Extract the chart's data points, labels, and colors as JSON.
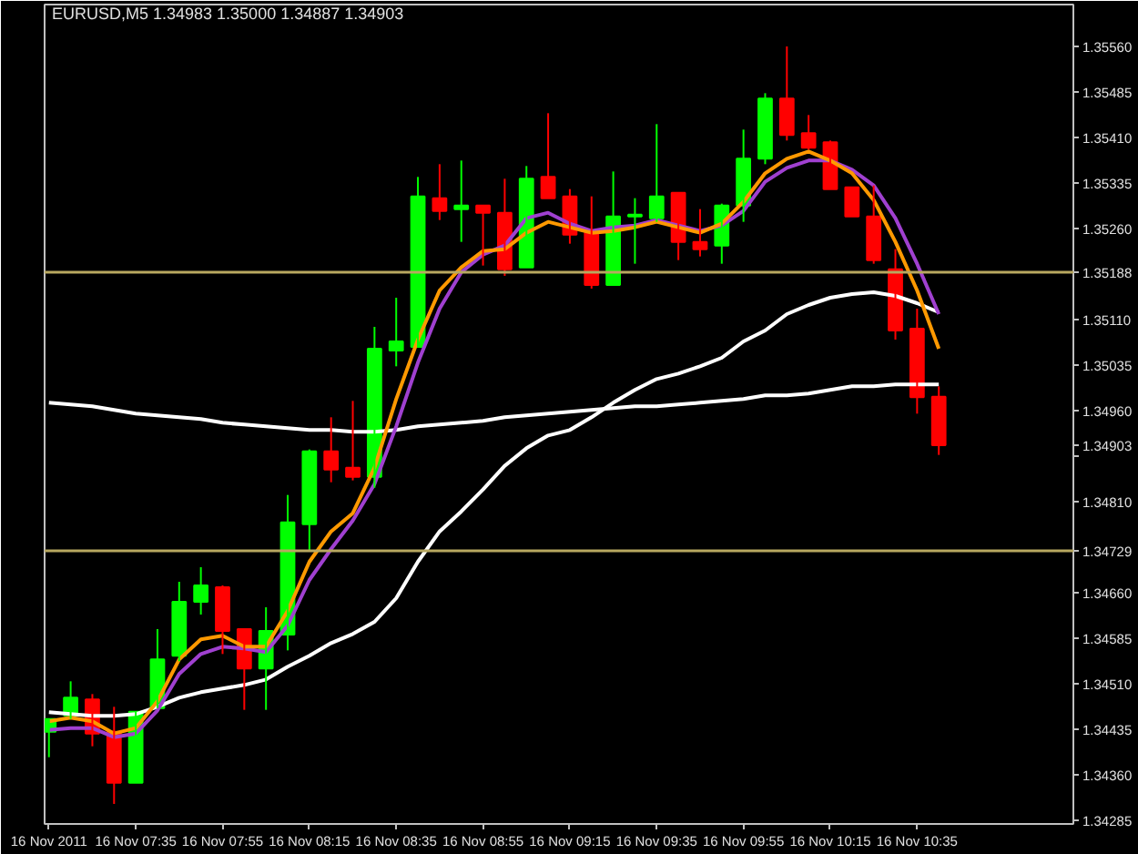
{
  "chart_data": {
    "type": "candlestick",
    "title": "EURUSD,M5  1.34983 1.35000 1.34887 1.34903",
    "x": [
      "2011-11-16T07:15",
      "2011-11-16T07:20",
      "2011-11-16T07:25",
      "2011-11-16T07:30",
      "2011-11-16T07:35",
      "2011-11-16T07:40",
      "2011-11-16T07:45",
      "2011-11-16T07:50",
      "2011-11-16T07:55",
      "2011-11-16T08:00",
      "2011-11-16T08:05",
      "2011-11-16T08:10",
      "2011-11-16T08:15",
      "2011-11-16T08:20",
      "2011-11-16T08:25",
      "2011-11-16T08:30",
      "2011-11-16T08:35",
      "2011-11-16T08:40",
      "2011-11-16T08:45",
      "2011-11-16T08:50",
      "2011-11-16T08:55",
      "2011-11-16T09:00",
      "2011-11-16T09:05",
      "2011-11-16T09:10",
      "2011-11-16T09:15",
      "2011-11-16T09:20",
      "2011-11-16T09:25",
      "2011-11-16T09:30",
      "2011-11-16T09:35",
      "2011-11-16T09:40",
      "2011-11-16T09:45",
      "2011-11-16T09:50",
      "2011-11-16T09:55",
      "2011-11-16T10:00",
      "2011-11-16T10:05",
      "2011-11-16T10:10",
      "2011-11-16T10:15",
      "2011-11-16T10:20",
      "2011-11-16T10:25",
      "2011-11-16T10:30",
      "2011-11-16T10:35",
      "2011-11-16T10:40"
    ],
    "ohlc": [
      [
        1.34431,
        1.34452,
        1.34389,
        1.34452
      ],
      [
        1.34458,
        1.34514,
        1.34452,
        1.34487
      ],
      [
        1.34484,
        1.34493,
        1.34407,
        1.34428
      ],
      [
        1.34431,
        1.34472,
        1.34312,
        1.34347
      ],
      [
        1.34347,
        1.34464,
        1.34347,
        1.34464
      ],
      [
        1.3447,
        1.346,
        1.3447,
        1.3455
      ],
      [
        1.34556,
        1.34678,
        1.34547,
        1.34645
      ],
      [
        1.34645,
        1.34702,
        1.34624,
        1.34672
      ],
      [
        1.34669,
        1.34672,
        1.34559,
        1.34597
      ],
      [
        1.346,
        1.346,
        1.34467,
        1.34535
      ],
      [
        1.34535,
        1.34636,
        1.34467,
        1.34597
      ],
      [
        1.34591,
        1.34821,
        1.34565,
        1.34776
      ],
      [
        1.34773,
        1.34896,
        1.34729,
        1.34893
      ],
      [
        1.34893,
        1.34949,
        1.34842,
        1.34863
      ],
      [
        1.34866,
        1.34976,
        1.34845,
        1.34851
      ],
      [
        1.34851,
        1.35098,
        1.34833,
        1.35062
      ],
      [
        1.35059,
        1.35146,
        1.35033,
        1.35074
      ],
      [
        1.35065,
        1.35345,
        1.35065,
        1.35313
      ],
      [
        1.3531,
        1.35366,
        1.35274,
        1.35289
      ],
      [
        1.35292,
        1.35372,
        1.35238,
        1.35298
      ],
      [
        1.35298,
        1.35298,
        1.35199,
        1.35286
      ],
      [
        1.35286,
        1.35342,
        1.35182,
        1.35193
      ],
      [
        1.35196,
        1.35363,
        1.35196,
        1.35342
      ],
      [
        1.35345,
        1.3545,
        1.3531,
        1.3531
      ],
      [
        1.35313,
        1.35325,
        1.35235,
        1.3525
      ],
      [
        1.35253,
        1.35313,
        1.35161,
        1.35167
      ],
      [
        1.35167,
        1.35354,
        1.35167,
        1.3528
      ],
      [
        1.3528,
        1.3531,
        1.35202,
        1.35283
      ],
      [
        1.35277,
        1.35432,
        1.35271,
        1.35313
      ],
      [
        1.35319,
        1.35319,
        1.35208,
        1.35238
      ],
      [
        1.35238,
        1.35292,
        1.35214,
        1.35226
      ],
      [
        1.35232,
        1.35301,
        1.35202,
        1.35298
      ],
      [
        1.35298,
        1.35423,
        1.35271,
        1.35375
      ],
      [
        1.35375,
        1.35483,
        1.35366,
        1.35474
      ],
      [
        1.35474,
        1.3556,
        1.35405,
        1.35414
      ],
      [
        1.35417,
        1.35447,
        1.3539,
        1.35393
      ],
      [
        1.35402,
        1.35405,
        1.35325,
        1.35325
      ],
      [
        1.35328,
        1.35328,
        1.3528,
        1.3528
      ],
      [
        1.3528,
        1.35331,
        1.35202,
        1.35208
      ],
      [
        1.35193,
        1.35226,
        1.35077,
        1.35092
      ],
      [
        1.35095,
        1.35128,
        1.34955,
        1.34982
      ],
      [
        1.34983,
        1.35,
        1.34887,
        1.34903
      ]
    ],
    "colors": [
      "#00ff00",
      "#00ff00",
      "#ff0000",
      "#ff0000",
      "#00ff00",
      "#00ff00",
      "#00ff00",
      "#00ff00",
      "#ff0000",
      "#ff0000",
      "#00ff00",
      "#00ff00",
      "#00ff00",
      "#ff0000",
      "#ff0000",
      "#00ff00",
      "#00ff00",
      "#00ff00",
      "#ff0000",
      "#00ff00",
      "#ff0000",
      "#ff0000",
      "#00ff00",
      "#ff0000",
      "#ff0000",
      "#ff0000",
      "#00ff00",
      "#00ff00",
      "#00ff00",
      "#ff0000",
      "#ff0000",
      "#00ff00",
      "#00ff00",
      "#00ff00",
      "#ff0000",
      "#ff0000",
      "#ff0000",
      "#ff0000",
      "#ff0000",
      "#ff0000",
      "#ff0000",
      "#ff0000"
    ],
    "series": [
      {
        "type": "line",
        "color": "#ffffff",
        "values": [
          1.34973,
          1.3497,
          1.34967,
          1.34961,
          1.34955,
          1.34952,
          1.34949,
          1.34946,
          1.3494,
          1.34937,
          1.34934,
          1.34931,
          1.34928,
          1.34928,
          1.34925,
          1.34925,
          1.34928,
          1.34934,
          1.34937,
          1.3494,
          1.34943,
          1.34949,
          1.34952,
          1.34955,
          1.34958,
          1.34961,
          1.34964,
          1.34967,
          1.34967,
          1.3497,
          1.34973,
          1.34976,
          1.34979,
          1.34985,
          1.34985,
          1.34988,
          1.34994,
          1.35,
          1.35,
          1.35003,
          1.35003,
          1.35003
        ]
      },
      {
        "type": "line",
        "color": "#ffffff",
        "values": [
          1.34463,
          1.3446,
          1.34457,
          1.34457,
          1.3446,
          1.34472,
          1.34487,
          1.34496,
          1.34502,
          1.34508,
          1.34517,
          1.34538,
          1.34556,
          1.34577,
          1.34592,
          1.34612,
          1.34651,
          1.34711,
          1.34761,
          1.34794,
          1.3483,
          1.34869,
          1.34898,
          1.34919,
          1.34928,
          1.34949,
          1.34973,
          1.34994,
          1.35012,
          1.35021,
          1.35033,
          1.35047,
          1.35074,
          1.35092,
          1.35119,
          1.35134,
          1.35146,
          1.35152,
          1.35155,
          1.35149,
          1.35137,
          1.35122
        ]
      },
      {
        "type": "line",
        "color": "#a040d0",
        "values": [
          1.34434,
          1.34437,
          1.34437,
          1.34422,
          1.34428,
          1.34466,
          1.34526,
          1.34559,
          1.34571,
          1.34568,
          1.34562,
          1.34606,
          1.34681,
          1.34732,
          1.34779,
          1.34839,
          1.34934,
          1.35039,
          1.35128,
          1.35188,
          1.35217,
          1.35232,
          1.35277,
          1.35286,
          1.35268,
          1.35256,
          1.35262,
          1.35265,
          1.35274,
          1.35265,
          1.35256,
          1.35265,
          1.35289,
          1.35337,
          1.3536,
          1.35372,
          1.35372,
          1.35357,
          1.35331,
          1.35277,
          1.35202,
          1.35119
        ]
      },
      {
        "type": "line",
        "color": "#ff9900",
        "values": [
          1.34448,
          1.34454,
          1.34448,
          1.34428,
          1.34437,
          1.34481,
          1.3455,
          1.34583,
          1.34589,
          1.34571,
          1.34571,
          1.3463,
          1.34711,
          1.34761,
          1.34791,
          1.34866,
          1.34979,
          1.35077,
          1.35158,
          1.35196,
          1.35223,
          1.35226,
          1.35253,
          1.35271,
          1.35262,
          1.35253,
          1.35256,
          1.35262,
          1.35271,
          1.35262,
          1.35253,
          1.35268,
          1.35304,
          1.35351,
          1.35375,
          1.35387,
          1.35372,
          1.35351,
          1.35307,
          1.35238,
          1.35158,
          1.35062
        ]
      }
    ],
    "xlim": [
      "2011-11-16T07:14",
      "2011-11-16T11:11"
    ],
    "ylim": [
      1.34279,
      1.35629
    ],
    "xticks": [
      {
        "value": "2011-11-16T07:15",
        "label": "16 Nov 2011"
      },
      {
        "value": "2011-11-16T07:35",
        "label": "16 Nov 07:35"
      },
      {
        "value": "2011-11-16T07:55",
        "label": "16 Nov 07:55"
      },
      {
        "value": "2011-11-16T08:15",
        "label": "16 Nov 08:15"
      },
      {
        "value": "2011-11-16T08:35",
        "label": "16 Nov 08:35"
      },
      {
        "value": "2011-11-16T08:55",
        "label": "16 Nov 08:55"
      },
      {
        "value": "2011-11-16T09:15",
        "label": "16 Nov 09:15"
      },
      {
        "value": "2011-11-16T09:35",
        "label": "16 Nov 09:35"
      },
      {
        "value": "2011-11-16T09:55",
        "label": "16 Nov 09:55"
      },
      {
        "value": "2011-11-16T10:15",
        "label": "16 Nov 10:15"
      },
      {
        "value": "2011-11-16T10:35",
        "label": "16 Nov 10:35"
      }
    ],
    "yticks": [
      1.34285,
      {
        "value": 1.3436,
        "label": "1.34360"
      },
      1.34435,
      {
        "value": 1.3451,
        "label": "1.34510"
      },
      1.34585,
      {
        "value": 1.3466,
        "label": "1.34660"
      },
      {
        "value": 1.3481,
        "label": "1.34810"
      },
      {
        "value": 1.34885,
        "label": null
      },
      {
        "value": 1.34903,
        "label": "1.34903"
      },
      {
        "value": 1.3496,
        "label": "1.34960"
      },
      1.35035,
      {
        "value": 1.3511,
        "label": "1.35110"
      },
      {
        "value": 1.3526,
        "label": "1.35260"
      },
      1.35335,
      {
        "value": 1.3541,
        "label": "1.35410"
      },
      1.35485,
      {
        "value": 1.3556,
        "label": "1.35560"
      }
    ],
    "ref_lines": [
      {
        "axis": "y",
        "value": 1.35188,
        "label": "1.35188",
        "color": "#b8a860"
      },
      {
        "axis": "y",
        "value": 1.34729,
        "label": "1.34729",
        "color": "#b8a860"
      }
    ]
  }
}
